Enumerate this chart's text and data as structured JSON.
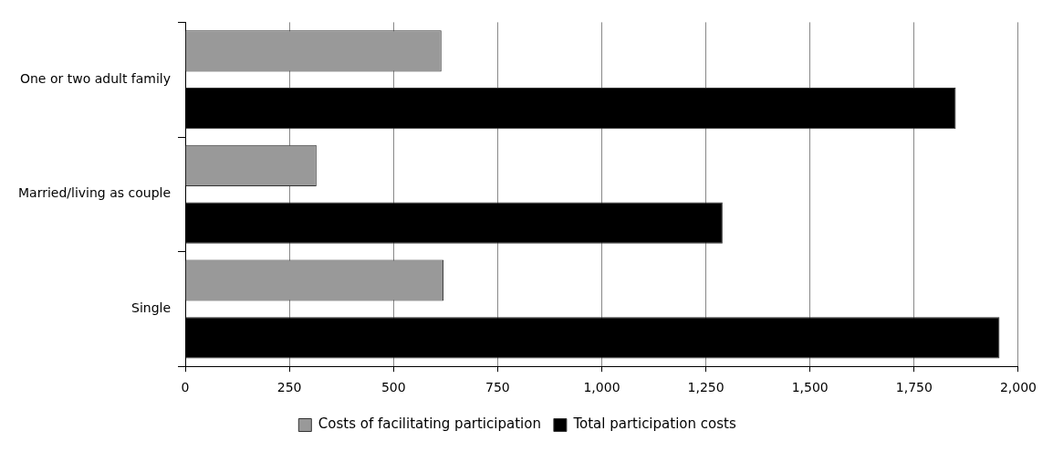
{
  "chart_data": {
    "type": "bar",
    "orientation": "horizontal",
    "categories": [
      "One or two adult family",
      "Married/living as couple",
      "Single"
    ],
    "series": [
      {
        "name": "Costs of facilitating participation",
        "color": "#999999",
        "values": [
          615,
          315,
          620
        ]
      },
      {
        "name": "Total participation costs",
        "color": "#000000",
        "values": [
          1850,
          1290,
          1955
        ]
      }
    ],
    "xlim": [
      0,
      2000
    ],
    "xticks": [
      {
        "value": 0,
        "label": "0"
      },
      {
        "value": 250,
        "label": "250"
      },
      {
        "value": 500,
        "label": "500"
      },
      {
        "value": 750,
        "label": "750"
      },
      {
        "value": 1000,
        "label": "1,000"
      },
      {
        "value": 1250,
        "label": "1,250"
      },
      {
        "value": 1500,
        "label": "1,500"
      },
      {
        "value": 1750,
        "label": "1,750"
      },
      {
        "value": 2000,
        "label": "2,000"
      }
    ],
    "grid": "x",
    "legend": "bottom"
  }
}
